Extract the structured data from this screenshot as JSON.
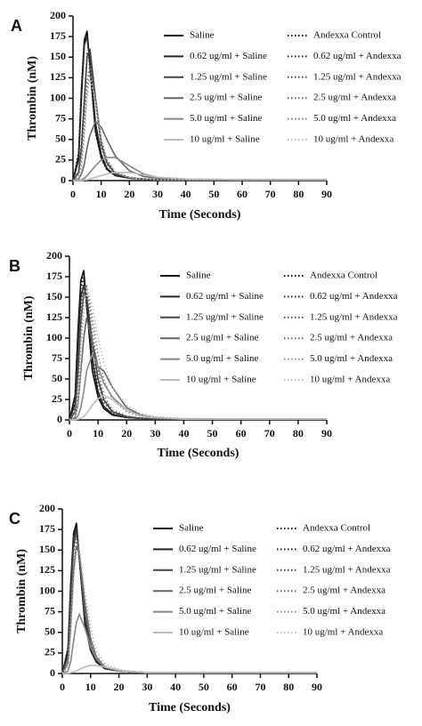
{
  "chart_data": [
    {
      "type": "line",
      "panel_label": "A",
      "x_label": "Time (Seconds)",
      "y_label": "Thrombin (nM)",
      "x": [
        0,
        2,
        3,
        4,
        5,
        6,
        8,
        10,
        12,
        15,
        20,
        25,
        30,
        40,
        60,
        90
      ],
      "xlim": [
        0,
        90
      ],
      "xticks": [
        0,
        10,
        20,
        30,
        40,
        50,
        60,
        70,
        80,
        90
      ],
      "ylim": [
        0,
        200
      ],
      "yticks": [
        0,
        25,
        50,
        75,
        100,
        125,
        150,
        175,
        200
      ],
      "series": [
        {
          "name": "Saline",
          "color": "#111111",
          "style": "solid",
          "values": [
            0,
            30,
            110,
            170,
            182,
            140,
            60,
            28,
            14,
            6,
            3,
            2,
            1,
            1,
            1,
            1
          ]
        },
        {
          "name": "Andexxa Control",
          "color": "#111111",
          "style": "dotted",
          "values": [
            0,
            35,
            115,
            172,
            178,
            135,
            58,
            27,
            13,
            6,
            3,
            2,
            1,
            1,
            1,
            1
          ]
        },
        {
          "name": "0.62 ug/ml + Saline",
          "color": "#262626",
          "style": "solid",
          "values": [
            0,
            25,
            100,
            165,
            175,
            145,
            70,
            32,
            15,
            6,
            3,
            2,
            1,
            1,
            1,
            1
          ]
        },
        {
          "name": "0.62 ug/ml + Andexxa",
          "color": "#262626",
          "style": "dotted",
          "values": [
            0,
            30,
            108,
            168,
            176,
            140,
            65,
            30,
            14,
            6,
            3,
            2,
            1,
            1,
            1,
            1
          ]
        },
        {
          "name": "1.25 ug/ml + Saline",
          "color": "#444444",
          "style": "solid",
          "values": [
            0,
            10,
            40,
            95,
            150,
            160,
            100,
            45,
            22,
            8,
            3,
            2,
            1,
            1,
            1,
            1
          ]
        },
        {
          "name": "1.25 ug/ml + Andexxa",
          "color": "#444444",
          "style": "dotted",
          "values": [
            0,
            12,
            45,
            100,
            155,
            158,
            95,
            42,
            20,
            8,
            3,
            2,
            1,
            1,
            1,
            1
          ]
        },
        {
          "name": "2.5 ug/ml + Saline",
          "color": "#666666",
          "style": "solid",
          "values": [
            0,
            2,
            8,
            20,
            40,
            55,
            72,
            65,
            50,
            30,
            12,
            5,
            3,
            1,
            1,
            1
          ]
        },
        {
          "name": "2.5 ug/ml + Andexxa",
          "color": "#666666",
          "style": "dotted",
          "values": [
            0,
            8,
            30,
            70,
            120,
            140,
            100,
            50,
            25,
            10,
            4,
            2,
            1,
            1,
            1,
            1
          ]
        },
        {
          "name": "5.0 ug/ml + Saline",
          "color": "#888888",
          "style": "solid",
          "values": [
            0,
            0,
            1,
            3,
            6,
            10,
            18,
            25,
            28,
            28,
            18,
            8,
            4,
            2,
            1,
            1
          ]
        },
        {
          "name": "5.0 ug/ml + Andexxa",
          "color": "#888888",
          "style": "dotted",
          "values": [
            0,
            5,
            20,
            60,
            110,
            130,
            100,
            50,
            25,
            10,
            4,
            2,
            1,
            1,
            1,
            1
          ]
        },
        {
          "name": "10 ug/ml + Saline",
          "color": "#bbbbbb",
          "style": "solid",
          "values": [
            0,
            0,
            0,
            1,
            1,
            2,
            4,
            6,
            8,
            10,
            10,
            7,
            4,
            2,
            1,
            1
          ]
        },
        {
          "name": "10 ug/ml + Andexxa",
          "color": "#bbbbbb",
          "style": "dotted",
          "values": [
            0,
            3,
            15,
            50,
            100,
            125,
            95,
            50,
            25,
            10,
            4,
            2,
            1,
            1,
            1,
            1
          ]
        }
      ]
    },
    {
      "type": "line",
      "panel_label": "B",
      "x_label": "Time (Seconds)",
      "y_label": "Thrombin (nM)",
      "x": [
        0,
        2,
        3,
        4,
        5,
        6,
        8,
        10,
        12,
        15,
        20,
        25,
        30,
        40,
        60,
        90
      ],
      "xlim": [
        0,
        90
      ],
      "xticks": [
        0,
        10,
        20,
        30,
        40,
        50,
        60,
        70,
        80,
        90
      ],
      "ylim": [
        0,
        200
      ],
      "yticks": [
        0,
        25,
        50,
        75,
        100,
        125,
        150,
        175,
        200
      ],
      "series": [
        {
          "name": "Saline",
          "color": "#111111",
          "style": "solid",
          "values": [
            0,
            30,
            110,
            170,
            183,
            140,
            60,
            28,
            14,
            6,
            3,
            2,
            1,
            1,
            1,
            1
          ]
        },
        {
          "name": "Andexxa Control",
          "color": "#111111",
          "style": "dotted",
          "values": [
            0,
            30,
            105,
            165,
            178,
            140,
            62,
            30,
            15,
            6,
            3,
            2,
            1,
            1,
            1,
            1
          ]
        },
        {
          "name": "0.62 ug/ml + Saline",
          "color": "#262626",
          "style": "solid",
          "values": [
            0,
            20,
            90,
            150,
            165,
            145,
            75,
            35,
            17,
            7,
            3,
            2,
            1,
            1,
            1,
            1
          ]
        },
        {
          "name": "0.62 ug/ml + Andexxa",
          "color": "#262626",
          "style": "dotted",
          "values": [
            0,
            25,
            100,
            160,
            172,
            145,
            70,
            32,
            16,
            7,
            3,
            2,
            1,
            1,
            1,
            1
          ]
        },
        {
          "name": "1.25 ug/ml + Saline",
          "color": "#444444",
          "style": "solid",
          "values": [
            0,
            10,
            60,
            120,
            155,
            150,
            95,
            50,
            25,
            10,
            4,
            2,
            1,
            1,
            1,
            1
          ]
        },
        {
          "name": "1.25 ug/ml + Andexxa",
          "color": "#444444",
          "style": "dotted",
          "values": [
            0,
            15,
            70,
            135,
            165,
            155,
            90,
            45,
            22,
            9,
            3,
            2,
            1,
            1,
            1,
            1
          ]
        },
        {
          "name": "2.5 ug/ml + Saline",
          "color": "#666666",
          "style": "solid",
          "values": [
            0,
            3,
            20,
            60,
            100,
            125,
            95,
            65,
            60,
            40,
            15,
            6,
            3,
            1,
            1,
            1
          ]
        },
        {
          "name": "2.5 ug/ml + Andexxa",
          "color": "#666666",
          "style": "dotted",
          "values": [
            0,
            10,
            50,
            115,
            160,
            165,
            110,
            60,
            30,
            12,
            5,
            2,
            1,
            1,
            1,
            1
          ]
        },
        {
          "name": "5.0 ug/ml + Saline",
          "color": "#888888",
          "style": "solid",
          "values": [
            0,
            1,
            5,
            15,
            35,
            60,
            80,
            65,
            45,
            28,
            12,
            5,
            3,
            1,
            1,
            1
          ]
        },
        {
          "name": "5.0 ug/ml + Andexxa",
          "color": "#888888",
          "style": "dotted",
          "values": [
            0,
            5,
            35,
            95,
            150,
            165,
            125,
            80,
            50,
            25,
            10,
            4,
            2,
            1,
            1,
            1
          ]
        },
        {
          "name": "10 ug/ml + Saline",
          "color": "#bbbbbb",
          "style": "solid",
          "values": [
            0,
            0,
            1,
            2,
            4,
            8,
            18,
            26,
            30,
            25,
            12,
            5,
            3,
            1,
            1,
            1
          ]
        },
        {
          "name": "10 ug/ml + Andexxa",
          "color": "#bbbbbb",
          "style": "dotted",
          "values": [
            0,
            3,
            20,
            70,
            130,
            160,
            140,
            100,
            70,
            40,
            18,
            8,
            4,
            2,
            1,
            1
          ]
        }
      ]
    },
    {
      "type": "line",
      "panel_label": "C",
      "x_label": "Time (Seconds)",
      "y_label": "Thrombin (nM)",
      "x": [
        0,
        2,
        3,
        4,
        5,
        6,
        8,
        10,
        12,
        15,
        20,
        25,
        30,
        40,
        60,
        90
      ],
      "xlim": [
        0,
        90
      ],
      "xticks": [
        0,
        10,
        20,
        30,
        40,
        50,
        60,
        70,
        80,
        90
      ],
      "ylim": [
        0,
        200
      ],
      "yticks": [
        0,
        25,
        50,
        75,
        100,
        125,
        150,
        175,
        200
      ],
      "series": [
        {
          "name": "Saline",
          "color": "#111111",
          "style": "solid",
          "values": [
            0,
            30,
            110,
            170,
            183,
            140,
            60,
            28,
            14,
            6,
            3,
            2,
            1,
            1,
            1,
            1
          ]
        },
        {
          "name": "Andexxa Control",
          "color": "#111111",
          "style": "dotted",
          "values": [
            0,
            32,
            112,
            172,
            180,
            138,
            60,
            28,
            14,
            6,
            3,
            2,
            1,
            1,
            1,
            1
          ]
        },
        {
          "name": "0.62 ug/ml + Saline",
          "color": "#262626",
          "style": "solid",
          "values": [
            0,
            25,
            100,
            165,
            178,
            142,
            65,
            30,
            15,
            6,
            3,
            2,
            1,
            1,
            1,
            1
          ]
        },
        {
          "name": "0.62 ug/ml + Andexxa",
          "color": "#262626",
          "style": "dotted",
          "values": [
            0,
            28,
            105,
            168,
            178,
            140,
            63,
            29,
            14,
            6,
            3,
            2,
            1,
            1,
            1,
            1
          ]
        },
        {
          "name": "1.25 ug/ml + Saline",
          "color": "#444444",
          "style": "solid",
          "values": [
            0,
            20,
            90,
            155,
            172,
            145,
            72,
            34,
            17,
            7,
            3,
            2,
            1,
            1,
            1,
            1
          ]
        },
        {
          "name": "1.25 ug/ml + Andexxa",
          "color": "#444444",
          "style": "dotted",
          "values": [
            0,
            22,
            95,
            160,
            175,
            143,
            70,
            33,
            16,
            7,
            3,
            2,
            1,
            1,
            1,
            1
          ]
        },
        {
          "name": "2.5 ug/ml + Saline",
          "color": "#666666",
          "style": "solid",
          "values": [
            0,
            12,
            60,
            125,
            155,
            145,
            85,
            42,
            20,
            8,
            3,
            2,
            1,
            1,
            1,
            1
          ]
        },
        {
          "name": "2.5 ug/ml + Andexxa",
          "color": "#666666",
          "style": "dotted",
          "values": [
            0,
            18,
            80,
            145,
            168,
            145,
            78,
            38,
            18,
            8,
            3,
            2,
            1,
            1,
            1,
            1
          ]
        },
        {
          "name": "5.0 ug/ml + Saline",
          "color": "#888888",
          "style": "solid",
          "values": [
            0,
            3,
            15,
            40,
            62,
            72,
            55,
            32,
            18,
            8,
            3,
            2,
            1,
            1,
            1,
            1
          ]
        },
        {
          "name": "5.0 ug/ml + Andexxa",
          "color": "#888888",
          "style": "dotted",
          "values": [
            0,
            12,
            65,
            130,
            160,
            150,
            90,
            45,
            22,
            9,
            4,
            2,
            1,
            1,
            1,
            1
          ]
        },
        {
          "name": "10 ug/ml + Saline",
          "color": "#bbbbbb",
          "style": "solid",
          "values": [
            0,
            0,
            1,
            2,
            3,
            5,
            8,
            10,
            10,
            8,
            4,
            2,
            1,
            1,
            1,
            1
          ]
        },
        {
          "name": "10 ug/ml + Andexxa",
          "color": "#bbbbbb",
          "style": "dotted",
          "values": [
            0,
            8,
            45,
            110,
            150,
            150,
            100,
            55,
            28,
            12,
            5,
            2,
            1,
            1,
            1,
            1
          ]
        }
      ]
    }
  ]
}
